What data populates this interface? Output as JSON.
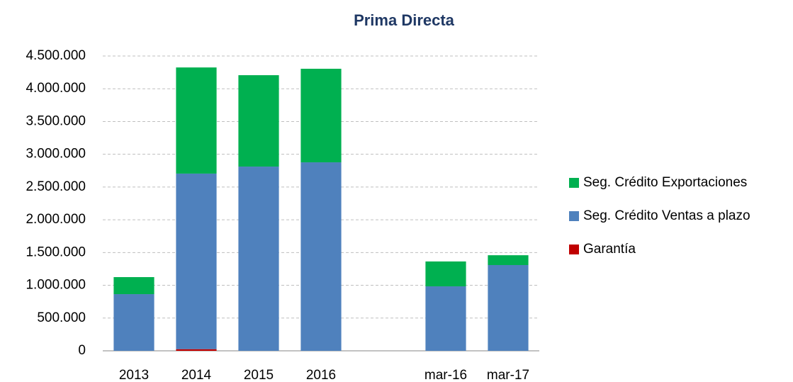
{
  "chart_data": {
    "type": "stacked_bar",
    "title": "Prima Directa",
    "categories": [
      "2013",
      "2014",
      "2015",
      "2016",
      null,
      "mar-16",
      "mar-17"
    ],
    "series": [
      {
        "name": "Garantía",
        "color": "#c00000",
        "values": [
          0,
          25000,
          0,
          0,
          null,
          0,
          0
        ]
      },
      {
        "name": "Seg. Crédito Ventas a plazo",
        "color": "#4f81bd",
        "values": [
          865000,
          2680000,
          2812000,
          2877000,
          null,
          984000,
          1309000
        ]
      },
      {
        "name": "Seg. Crédito Exportaciones",
        "color": "#00b050",
        "values": [
          260000,
          1620000,
          1395000,
          1428000,
          null,
          380000,
          150000
        ]
      }
    ],
    "ylim": [
      0,
      4500000
    ],
    "yticks": [
      0,
      {
        "value": 500000,
        "label": "500.000"
      },
      {
        "value": 1000000,
        "label": "1.000.000"
      },
      {
        "value": 1500000,
        "label": "1.500.000"
      },
      {
        "value": 2000000,
        "label": "2.000.000"
      },
      {
        "value": 2500000,
        "label": "2.500.000"
      },
      {
        "value": 3000000,
        "label": "3.000.000"
      },
      {
        "value": 3500000,
        "label": "3.500.000"
      },
      {
        "value": 4000000,
        "label": "4.000.000"
      },
      {
        "value": 4500000,
        "label": "4.500.000"
      }
    ],
    "grid": true,
    "legend": "right"
  }
}
